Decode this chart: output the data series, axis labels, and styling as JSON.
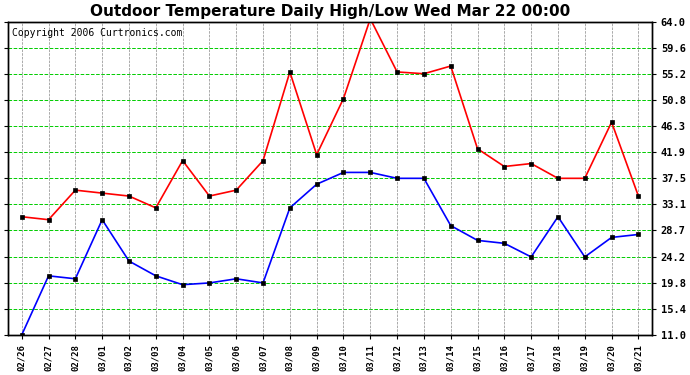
{
  "title": "Outdoor Temperature Daily High/Low Wed Mar 22 00:00",
  "copyright": "Copyright 2006 Curtronics.com",
  "x_labels": [
    "02/26",
    "02/27",
    "02/28",
    "03/01",
    "03/02",
    "03/03",
    "03/04",
    "03/05",
    "03/06",
    "03/07",
    "03/08",
    "03/09",
    "03/10",
    "03/11",
    "03/12",
    "03/13",
    "03/14",
    "03/15",
    "03/16",
    "03/17",
    "03/18",
    "03/19",
    "03/20",
    "03/21"
  ],
  "high_temps": [
    31.0,
    30.5,
    35.5,
    35.0,
    34.5,
    32.5,
    40.5,
    34.5,
    35.5,
    40.5,
    55.5,
    41.5,
    51.0,
    64.5,
    55.5,
    55.2,
    56.5,
    42.5,
    39.5,
    40.0,
    37.5,
    37.5,
    47.0,
    34.5
  ],
  "low_temps": [
    11.0,
    21.0,
    20.5,
    30.5,
    23.5,
    21.0,
    19.5,
    19.8,
    20.5,
    19.8,
    32.5,
    36.5,
    38.5,
    38.5,
    37.5,
    37.5,
    29.5,
    27.0,
    26.5,
    24.2,
    31.0,
    24.2,
    27.5,
    28.0
  ],
  "yticks": [
    11.0,
    15.4,
    19.8,
    24.2,
    28.7,
    33.1,
    37.5,
    41.9,
    46.3,
    50.8,
    55.2,
    59.6,
    64.0
  ],
  "ylim": [
    11.0,
    64.0
  ],
  "bg_color": "#ffffff",
  "plot_bg_color": "#ffffff",
  "high_color": "#ff0000",
  "low_color": "#0000ff",
  "grid_color_h": "#00cc00",
  "grid_color_v": "#888888",
  "border_color": "#000000",
  "title_fontsize": 11,
  "copyright_fontsize": 7,
  "marker": "s",
  "marker_size": 3,
  "linewidth": 1.2
}
